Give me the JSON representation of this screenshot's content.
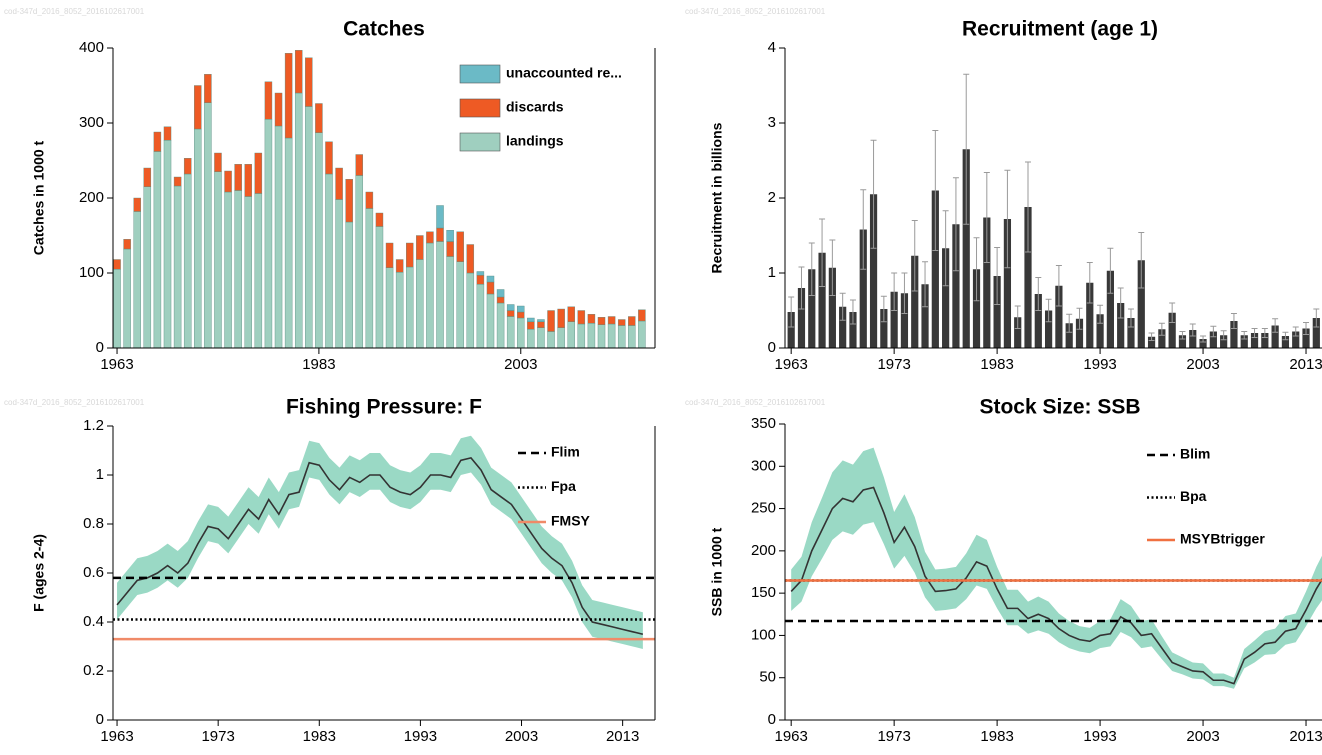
{
  "chart_data": [
    {
      "type": "stacked_bar",
      "title": "Catches",
      "watermark": "cod-347d_2016_8052_2016102617001",
      "y_label": "Catches in 1000 t",
      "x": [
        1963,
        1964,
        1965,
        1966,
        1967,
        1968,
        1969,
        1970,
        1971,
        1972,
        1973,
        1974,
        1975,
        1976,
        1977,
        1978,
        1979,
        1980,
        1981,
        1982,
        1983,
        1984,
        1985,
        1986,
        1987,
        1988,
        1989,
        1990,
        1991,
        1992,
        1993,
        1994,
        1995,
        1996,
        1997,
        1998,
        1999,
        2000,
        2001,
        2002,
        2003,
        2004,
        2005,
        2006,
        2007,
        2008,
        2009,
        2010,
        2011,
        2012,
        2013,
        2014,
        2015
      ],
      "series": [
        {
          "name": "landings",
          "color": "#9fcfbf",
          "values": [
            105,
            132,
            182,
            215,
            262,
            277,
            216,
            232,
            292,
            327,
            235,
            208,
            210,
            202,
            206,
            305,
            296,
            280,
            340,
            322,
            287,
            232,
            198,
            168,
            230,
            186,
            162,
            107,
            101,
            108,
            118,
            140,
            142,
            122,
            115,
            100,
            85,
            72,
            60,
            42,
            40,
            25,
            27,
            22,
            27,
            35,
            32,
            33,
            31,
            32,
            30,
            30,
            36
          ]
        },
        {
          "name": "discards",
          "color": "#ee5a24",
          "values": [
            13,
            13,
            18,
            25,
            26,
            18,
            12,
            21,
            58,
            38,
            25,
            28,
            35,
            43,
            54,
            50,
            44,
            113,
            57,
            65,
            39,
            43,
            42,
            57,
            28,
            22,
            18,
            33,
            17,
            32,
            32,
            15,
            18,
            20,
            40,
            38,
            12,
            16,
            8,
            8,
            8,
            10,
            8,
            28,
            25,
            20,
            18,
            12,
            10,
            10,
            8,
            12,
            15
          ]
        },
        {
          "name": "unaccounted re...",
          "color": "#6bbac6",
          "values": [
            0,
            0,
            0,
            0,
            0,
            0,
            0,
            0,
            0,
            0,
            0,
            0,
            0,
            0,
            0,
            0,
            0,
            0,
            0,
            0,
            0,
            0,
            0,
            0,
            0,
            0,
            0,
            0,
            0,
            0,
            0,
            0,
            30,
            15,
            0,
            0,
            5,
            8,
            10,
            8,
            8,
            5,
            3,
            0,
            0,
            0,
            0,
            0,
            0,
            0,
            0,
            0,
            0
          ]
        }
      ],
      "xlim": [
        1962.6,
        2016.3
      ],
      "xticks": [
        1963,
        1983,
        2003
      ],
      "ylim": [
        0,
        400
      ],
      "yticks": [
        0,
        100,
        200,
        300,
        400
      ],
      "legend": "upper right"
    },
    {
      "type": "bar",
      "title": "Recruitment (age 1)",
      "watermark": "cod-347d_2016_8052_2016102617001",
      "y_label": "Recruitment in billions",
      "x": [
        1963,
        1964,
        1965,
        1966,
        1967,
        1968,
        1969,
        1970,
        1971,
        1972,
        1973,
        1974,
        1975,
        1976,
        1977,
        1978,
        1979,
        1980,
        1981,
        1982,
        1983,
        1984,
        1985,
        1986,
        1987,
        1988,
        1989,
        1990,
        1991,
        1992,
        1993,
        1994,
        1995,
        1996,
        1997,
        1998,
        1999,
        2000,
        2001,
        2002,
        2003,
        2004,
        2005,
        2006,
        2007,
        2008,
        2009,
        2010,
        2011,
        2012,
        2013,
        2014,
        2015
      ],
      "values": [
        0.48,
        0.8,
        1.05,
        1.27,
        1.07,
        0.55,
        0.48,
        1.58,
        2.05,
        0.52,
        0.75,
        0.73,
        1.23,
        0.85,
        2.1,
        1.33,
        1.65,
        2.65,
        1.05,
        1.74,
        0.96,
        1.72,
        0.41,
        1.88,
        0.72,
        0.5,
        0.83,
        0.33,
        0.39,
        0.87,
        0.45,
        1.03,
        0.6,
        0.4,
        1.17,
        0.15,
        0.25,
        0.47,
        0.17,
        0.24,
        0.12,
        0.22,
        0.17,
        0.36,
        0.17,
        0.2,
        0.2,
        0.3,
        0.16,
        0.22,
        0.26,
        0.4,
        0.18
      ],
      "errors": [
        0.2,
        0.28,
        0.35,
        0.45,
        0.37,
        0.18,
        0.16,
        0.53,
        0.72,
        0.17,
        0.25,
        0.27,
        0.47,
        0.3,
        0.8,
        0.5,
        0.62,
        1.0,
        0.42,
        0.6,
        0.38,
        0.65,
        0.15,
        0.6,
        0.22,
        0.15,
        0.27,
        0.12,
        0.14,
        0.27,
        0.12,
        0.3,
        0.2,
        0.12,
        0.37,
        0.05,
        0.08,
        0.13,
        0.05,
        0.08,
        0.04,
        0.07,
        0.06,
        0.1,
        0.05,
        0.06,
        0.06,
        0.09,
        0.05,
        0.06,
        0.08,
        0.12,
        0.06
      ],
      "color": "#383838",
      "error_color": "#9a9a9a",
      "xlim": [
        1962.4,
        2016.3
      ],
      "xticks": [
        1963,
        1973,
        1983,
        1993,
        2003,
        2013
      ],
      "ylim": [
        0,
        4
      ],
      "yticks": [
        0,
        1,
        2,
        3,
        4
      ]
    },
    {
      "type": "line",
      "title": "Fishing Pressure: F",
      "watermark": "cod-347d_2016_8052_2016102617001",
      "y_label": "F (ages 2-4)",
      "x": [
        1963,
        1964,
        1965,
        1966,
        1967,
        1968,
        1969,
        1970,
        1971,
        1972,
        1973,
        1974,
        1975,
        1976,
        1977,
        1978,
        1979,
        1980,
        1981,
        1982,
        1983,
        1984,
        1985,
        1986,
        1987,
        1988,
        1989,
        1990,
        1991,
        1992,
        1993,
        1994,
        1995,
        1996,
        1997,
        1998,
        1999,
        2000,
        2001,
        2002,
        2003,
        2004,
        2005,
        2006,
        2007,
        2008,
        2009,
        2010,
        2011,
        2012,
        2013,
        2014,
        2015
      ],
      "series": [
        {
          "color": "#333333",
          "band_color": "#9ad9c5",
          "values": [
            0.47,
            0.52,
            0.57,
            0.58,
            0.6,
            0.63,
            0.6,
            0.64,
            0.72,
            0.79,
            0.78,
            0.74,
            0.8,
            0.86,
            0.82,
            0.9,
            0.84,
            0.92,
            0.93,
            1.05,
            1.04,
            0.98,
            0.94,
            0.99,
            0.97,
            1.0,
            1.0,
            0.95,
            0.93,
            0.92,
            0.95,
            1.0,
            1.0,
            0.99,
            1.06,
            1.07,
            1.02,
            0.94,
            0.91,
            0.88,
            0.82,
            0.76,
            0.7,
            0.66,
            0.63,
            0.56,
            0.46,
            0.4,
            0.39,
            0.38,
            0.37,
            0.36,
            0.35
          ],
          "low": [
            0.41,
            0.46,
            0.51,
            0.52,
            0.54,
            0.57,
            0.54,
            0.58,
            0.66,
            0.73,
            0.72,
            0.68,
            0.74,
            0.8,
            0.76,
            0.84,
            0.78,
            0.86,
            0.87,
            0.99,
            0.98,
            0.92,
            0.88,
            0.93,
            0.91,
            0.94,
            0.94,
            0.89,
            0.87,
            0.86,
            0.89,
            0.94,
            0.94,
            0.93,
            1.0,
            1.01,
            0.96,
            0.88,
            0.85,
            0.82,
            0.76,
            0.7,
            0.64,
            0.6,
            0.57,
            0.5,
            0.4,
            0.34,
            0.33,
            0.32,
            0.31,
            0.3,
            0.29
          ],
          "high": [
            0.56,
            0.61,
            0.66,
            0.67,
            0.69,
            0.72,
            0.69,
            0.73,
            0.81,
            0.88,
            0.87,
            0.83,
            0.89,
            0.95,
            0.91,
            0.99,
            0.93,
            1.01,
            1.02,
            1.14,
            1.13,
            1.07,
            1.03,
            1.08,
            1.06,
            1.09,
            1.09,
            1.04,
            1.02,
            1.01,
            1.04,
            1.09,
            1.09,
            1.08,
            1.15,
            1.16,
            1.11,
            1.03,
            1.0,
            0.97,
            0.91,
            0.85,
            0.79,
            0.75,
            0.72,
            0.65,
            0.55,
            0.49,
            0.48,
            0.47,
            0.46,
            0.45,
            0.44
          ]
        }
      ],
      "reference_lines": [
        {
          "name": "Flim",
          "value": 0.58,
          "style": "dashed",
          "color": "#000000"
        },
        {
          "name": "Fpa",
          "value": 0.41,
          "style": "dotted",
          "color": "#000000"
        },
        {
          "name": "FMSY",
          "value": 0.33,
          "style": "solid",
          "color": "#f08a68"
        }
      ],
      "xlim": [
        1962.6,
        2016.2
      ],
      "xticks": [
        1963,
        1973,
        1983,
        1993,
        2003,
        2013
      ],
      "ylim": [
        0,
        1.2
      ],
      "yticks": [
        0,
        0.2,
        0.4,
        0.6,
        0.8,
        1,
        1.2
      ],
      "legend": "upper right"
    },
    {
      "type": "line",
      "title": "Stock Size: SSB",
      "watermark": "cod-347d_2016_8052_2016102617001",
      "y_label": "SSB in 1000 t",
      "x": [
        1963,
        1964,
        1965,
        1966,
        1967,
        1968,
        1969,
        1970,
        1971,
        1972,
        1973,
        1974,
        1975,
        1976,
        1977,
        1978,
        1979,
        1980,
        1981,
        1982,
        1983,
        1984,
        1985,
        1986,
        1987,
        1988,
        1989,
        1990,
        1991,
        1992,
        1993,
        1994,
        1995,
        1996,
        1997,
        1998,
        1999,
        2000,
        2001,
        2002,
        2003,
        2004,
        2005,
        2006,
        2007,
        2008,
        2009,
        2010,
        2011,
        2012,
        2013,
        2014,
        2015
      ],
      "series": [
        {
          "color": "#333333",
          "band_color": "#9ad9c5",
          "values": [
            152,
            165,
            200,
            225,
            250,
            262,
            258,
            272,
            275,
            245,
            210,
            228,
            205,
            170,
            152,
            153,
            155,
            168,
            187,
            182,
            155,
            132,
            132,
            120,
            125,
            120,
            108,
            100,
            95,
            93,
            100,
            102,
            122,
            115,
            100,
            102,
            85,
            68,
            63,
            58,
            57,
            47,
            47,
            43,
            72,
            80,
            90,
            92,
            105,
            108,
            130,
            155,
            175
          ],
          "low": [
            129,
            140,
            170,
            191,
            213,
            223,
            219,
            231,
            234,
            208,
            179,
            194,
            174,
            145,
            129,
            130,
            132,
            143,
            159,
            155,
            132,
            112,
            112,
            102,
            106,
            102,
            92,
            85,
            81,
            79,
            85,
            87,
            104,
            98,
            85,
            87,
            72,
            58,
            54,
            49,
            48,
            40,
            40,
            37,
            61,
            68,
            77,
            78,
            89,
            92,
            111,
            132,
            149
          ],
          "high": [
            178,
            193,
            234,
            263,
            293,
            307,
            302,
            318,
            322,
            287,
            246,
            267,
            240,
            199,
            178,
            179,
            181,
            197,
            219,
            213,
            181,
            154,
            154,
            140,
            146,
            140,
            126,
            117,
            111,
            109,
            117,
            119,
            143,
            135,
            117,
            119,
            99,
            80,
            74,
            68,
            67,
            55,
            55,
            50,
            84,
            94,
            105,
            108,
            123,
            126,
            152,
            181,
            205
          ]
        }
      ],
      "reference_lines": [
        {
          "name": "Blim",
          "value": 117,
          "style": "dashed",
          "color": "#000000"
        },
        {
          "name": "Bpa",
          "value": 165,
          "style": "dotted",
          "color": "#000000"
        },
        {
          "name": "MSYBtrigger",
          "value": 165,
          "style": "solid",
          "color": "#f07040"
        }
      ],
      "xlim": [
        1962.4,
        2016.3
      ],
      "xticks": [
        1963,
        1973,
        1983,
        1993,
        2003,
        2013
      ],
      "ylim": [
        0,
        350
      ],
      "yticks": [
        0,
        50,
        100,
        150,
        200,
        250,
        300,
        350
      ],
      "legend": "upper right"
    }
  ]
}
